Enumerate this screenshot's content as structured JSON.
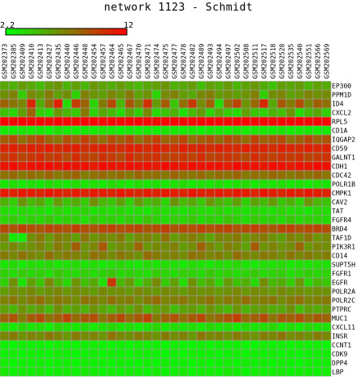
{
  "chart_data": {
    "type": "heatmap",
    "title": "network 1123 - Schmidt",
    "color_scale": {
      "min": 2.2,
      "max": 12,
      "min_label": "2.2",
      "max_label": "12",
      "low_color": "#00ff00",
      "high_color": "#ff0000",
      "grid_color": "#a0a0a0"
    },
    "columns": [
      "GSM202373",
      "GSM202385",
      "GSM202409",
      "GSM202410",
      "GSM202413",
      "GSM202427",
      "GSM202435",
      "GSM202440",
      "GSM202446",
      "GSM202448",
      "GSM202454",
      "GSM202457",
      "GSM202464",
      "GSM202465",
      "GSM202467",
      "GSM202470",
      "GSM202471",
      "GSM202474",
      "GSM202475",
      "GSM202477",
      "GSM202478",
      "GSM202482",
      "GSM202489",
      "GSM202493",
      "GSM202494",
      "GSM202497",
      "GSM202502",
      "GSM202508",
      "GSM202511",
      "GSM202517",
      "GSM202518",
      "GSM202528",
      "GSM202535",
      "GSM202540",
      "GSM202551",
      "GSM202566",
      "GSM202569"
    ],
    "rows": [
      "EP300",
      "PPM1D",
      "ID4",
      "CXCL2",
      "RPL5",
      "CD1A",
      "IQGAP2",
      "CD59",
      "GALNT1",
      "CDH1",
      "CDC42",
      "POLR1B",
      "CMPK1",
      "CAV2",
      "TAT",
      "FGFR4",
      "BRD4",
      "TAF1D",
      "PIK3R1",
      "CD14",
      "SUPT5H",
      "FGFR1",
      "EGFR",
      "POLR2A",
      "POLR2C",
      "PTPRC",
      "MUC1",
      "CXCL11",
      "INSR",
      "CCNT1",
      "CDK9",
      "DPP4",
      "LBP"
    ],
    "values": [
      [
        5.6,
        5.2,
        6.0,
        5.5,
        4.8,
        5.9,
        6.4,
        5.1,
        5.8,
        5.0,
        6.2,
        5.7,
        5.3,
        6.1,
        5.4,
        4.9,
        5.6,
        5.9,
        6.3,
        5.2,
        5.5,
        6.0,
        4.7,
        5.8,
        5.3,
        6.1,
        5.0,
        5.7,
        6.2,
        5.4,
        4.6,
        5.9,
        5.6,
        6.0,
        5.1,
        5.8,
        5.5
      ],
      [
        6.5,
        7.0,
        4.2,
        6.8,
        6.1,
        7.3,
        5.8,
        6.6,
        4.0,
        7.1,
        6.3,
        5.9,
        6.9,
        6.2,
        7.4,
        5.7,
        6.4,
        3.8,
        6.7,
        7.0,
        6.0,
        5.5,
        6.8,
        7.2,
        6.1,
        6.5,
        5.9,
        6.3,
        7.1,
        4.1,
        6.6,
        6.9,
        5.8,
        6.2,
        7.0,
        6.4,
        6.7
      ],
      [
        8.2,
        7.5,
        6.9,
        10.5,
        5.4,
        7.8,
        10.8,
        3.6,
        9.6,
        8.1,
        3.9,
        7.3,
        9.2,
        5.0,
        8.8,
        7.0,
        10.2,
        6.1,
        8.5,
        4.4,
        7.7,
        9.8,
        6.6,
        8.3,
        3.5,
        7.9,
        9.4,
        6.3,
        8.0,
        10.4,
        5.6,
        8.6,
        7.2,
        9.1,
        6.8,
        8.4,
        7.6
      ],
      [
        4.6,
        3.8,
        5.9,
        8.2,
        4.1,
        3.5,
        6.2,
        5.0,
        4.3,
        7.4,
        3.9,
        5.5,
        4.8,
        3.6,
        5.7,
        4.0,
        6.8,
        3.7,
        4.5,
        5.2,
        3.4,
        4.9,
        6.0,
        3.8,
        5.4,
        4.2,
        3.6,
        5.8,
        4.4,
        3.9,
        5.1,
        4.7,
        6.3,
        3.5,
        4.8,
        5.6,
        4.1
      ],
      [
        11.8,
        11.6,
        11.9,
        11.7,
        11.8,
        11.5,
        11.9,
        11.7,
        11.6,
        11.8,
        11.9,
        11.7,
        11.8,
        11.6,
        11.9,
        11.8,
        11.7,
        11.5,
        11.8,
        11.9,
        11.6,
        11.7,
        11.8,
        11.9,
        11.7,
        11.6,
        11.8,
        11.9,
        11.7,
        11.8,
        11.6,
        11.9,
        11.7,
        11.8,
        11.6,
        11.9,
        11.8
      ],
      [
        3.0,
        2.8,
        3.2,
        2.9,
        3.1,
        2.7,
        3.3,
        3.0,
        2.8,
        3.1,
        2.9,
        3.2,
        3.0,
        2.7,
        3.1,
        2.9,
        3.0,
        2.8,
        3.2,
        3.1,
        2.9,
        3.0,
        2.7,
        3.1,
        3.0,
        2.8,
        3.2,
        2.9,
        3.1,
        3.0,
        2.8,
        3.2,
        2.9,
        3.0,
        3.1,
        2.8,
        3.0
      ],
      [
        8.5,
        9.2,
        7.8,
        8.8,
        9.5,
        8.1,
        7.6,
        9.0,
        8.3,
        9.7,
        8.6,
        7.9,
        9.1,
        8.4,
        9.3,
        7.7,
        8.9,
        9.6,
        8.2,
        8.7,
        9.4,
        7.8,
        8.5,
        9.0,
        8.0,
        9.2,
        8.6,
        7.9,
        9.5,
        8.3,
        8.8,
        9.1,
        7.7,
        8.4,
        9.3,
        8.1,
        8.9
      ],
      [
        10.6,
        10.9,
        10.3,
        10.8,
        10.5,
        11.0,
        10.4,
        10.7,
        10.9,
        10.2,
        10.6,
        10.8,
        10.5,
        10.3,
        10.9,
        10.7,
        10.4,
        10.8,
        10.6,
        10.2,
        10.9,
        10.5,
        10.7,
        10.3,
        10.8,
        10.6,
        10.4,
        10.9,
        10.5,
        10.7,
        10.3,
        10.8,
        10.6,
        10.4,
        10.9,
        10.5,
        10.7
      ],
      [
        9.6,
        10.2,
        9.3,
        9.9,
        10.4,
        9.5,
        10.0,
        9.1,
        10.3,
        9.7,
        9.4,
        10.1,
        9.8,
        9.2,
        10.5,
        9.6,
        9.9,
        10.2,
        9.3,
        9.7,
        10.0,
        9.5,
        10.3,
        9.4,
        9.8,
        10.1,
        9.6,
        9.2,
        10.4,
        9.9,
        9.5,
        10.0,
        9.7,
        10.2,
        9.3,
        9.8,
        10.1
      ],
      [
        11.2,
        11.5,
        11.0,
        11.4,
        11.3,
        11.6,
        11.1,
        11.5,
        11.2,
        11.4,
        11.0,
        11.6,
        11.3,
        11.1,
        11.5,
        11.2,
        11.4,
        11.0,
        11.6,
        11.3,
        11.1,
        11.5,
        11.2,
        11.4,
        11.3,
        11.0,
        11.6,
        11.2,
        11.4,
        11.1,
        11.5,
        11.3,
        11.0,
        11.4,
        11.2,
        11.6,
        11.3
      ],
      [
        7.6,
        8.0,
        7.3,
        7.9,
        7.5,
        8.2,
        7.4,
        7.8,
        8.1,
        7.2,
        7.7,
        8.0,
        7.5,
        7.9,
        7.3,
        8.1,
        7.6,
        7.8,
        7.4,
        8.2,
        7.7,
        7.5,
        8.0,
        7.3,
        7.9,
        7.6,
        8.1,
        7.4,
        7.8,
        7.5,
        8.0,
        7.7,
        7.3,
        7.9,
        7.6,
        8.1,
        7.5
      ],
      [
        3.2,
        3.5,
        3.0,
        3.4,
        3.1,
        3.6,
        3.3,
        3.0,
        3.5,
        3.2,
        3.4,
        3.1,
        3.6,
        3.3,
        3.0,
        3.5,
        3.2,
        3.4,
        3.1,
        3.3,
        3.6,
        3.0,
        3.4,
        3.2,
        3.5,
        3.1,
        3.3,
        3.6,
        3.0,
        3.4,
        3.2,
        3.5,
        3.1,
        3.3,
        3.0,
        3.4,
        3.2
      ],
      [
        11.0,
        10.7,
        11.1,
        10.9,
        10.6,
        11.2,
        10.8,
        10.5,
        11.0,
        10.7,
        11.1,
        10.9,
        10.6,
        11.2,
        10.8,
        10.4,
        11.0,
        10.7,
        11.1,
        10.9,
        10.6,
        11.2,
        10.8,
        10.5,
        11.0,
        10.7,
        11.1,
        10.9,
        10.6,
        11.2,
        10.8,
        10.5,
        11.0,
        10.7,
        11.1,
        10.9,
        10.6
      ],
      [
        5.2,
        4.1,
        6.3,
        4.8,
        5.6,
        3.9,
        6.0,
        4.5,
        5.4,
        4.2,
        6.5,
        5.0,
        4.4,
        5.8,
        4.0,
        6.1,
        4.7,
        5.3,
        3.8,
        6.4,
        4.9,
        5.5,
        4.3,
        6.2,
        5.1,
        4.6,
        5.9,
        4.0,
        5.7,
        4.8,
        6.0,
        4.4,
        5.2,
        3.9,
        6.3,
        5.0,
        4.5
      ],
      [
        3.5,
        3.2,
        3.7,
        3.4,
        3.6,
        3.1,
        3.8,
        3.3,
        3.5,
        3.9,
        3.2,
        3.6,
        3.4,
        3.7,
        3.3,
        3.5,
        3.1,
        3.8,
        3.4,
        3.6,
        3.2,
        3.7,
        3.5,
        3.3,
        3.9,
        3.4,
        3.6,
        3.2,
        3.7,
        3.5,
        3.3,
        3.8,
        3.4,
        3.6,
        3.1,
        3.7,
        3.5
      ],
      [
        3.8,
        4.2,
        3.5,
        4.0,
        3.7,
        4.4,
        3.6,
        4.1,
        3.9,
        3.4,
        4.3,
        3.8,
        4.0,
        3.6,
        4.2,
        3.7,
        4.5,
        3.9,
        3.5,
        4.1,
        3.8,
        4.3,
        3.6,
        4.0,
        3.7,
        4.4,
        3.9,
        3.5,
        4.2,
        3.8,
        4.0,
        3.6,
        4.3,
        3.7,
        4.1,
        3.9,
        3.6
      ],
      [
        9.2,
        8.8,
        9.5,
        9.0,
        8.7,
        9.4,
        9.1,
        8.9,
        9.6,
        9.0,
        8.8,
        9.3,
        9.5,
        8.9,
        9.2,
        9.4,
        8.7,
        9.1,
        9.6,
        8.8,
        9.3,
        9.0,
        9.5,
        8.9,
        9.2,
        9.4,
        8.8,
        9.1,
        9.6,
        9.0,
        8.7,
        9.3,
        9.5,
        8.9,
        9.2,
        9.4,
        9.0
      ],
      [
        6.9,
        3.1,
        2.9,
        6.5,
        7.4,
        6.1,
        7.2,
        6.8,
        5.9,
        7.5,
        6.3,
        7.0,
        6.6,
        7.3,
        5.8,
        6.9,
        7.1,
        6.4,
        7.6,
        6.0,
        6.7,
        7.2,
        6.5,
        5.7,
        7.0,
        6.8,
        7.4,
        6.2,
        6.9,
        7.3,
        6.4,
        5.9,
        7.1,
        6.6,
        7.5,
        6.3,
        6.8
      ],
      [
        6.2,
        6.8,
        5.9,
        6.5,
        7.0,
        6.1,
        7.4,
        6.6,
        8.4,
        6.3,
        6.9,
        8.6,
        6.0,
        6.7,
        6.4,
        8.2,
        6.2,
        6.8,
        6.5,
        7.1,
        6.0,
        6.6,
        8.3,
        6.9,
        6.1,
        7.2,
        6.7,
        5.8,
        8.5,
        6.4,
        7.0,
        6.3,
        6.6,
        8.1,
        6.2,
        6.9,
        6.5
      ],
      [
        7.3,
        6.8,
        7.6,
        7.0,
        6.5,
        7.8,
        6.9,
        7.4,
        7.1,
        6.6,
        7.7,
        7.2,
        6.7,
        7.5,
        7.0,
        6.4,
        7.9,
        7.3,
        6.8,
        7.1,
        6.6,
        7.6,
        7.4,
        6.9,
        7.2,
        6.5,
        7.8,
        7.0,
        6.7,
        7.4,
        7.1,
        6.6,
        7.5,
        6.9,
        7.3,
        6.8,
        7.2
      ],
      [
        3.2,
        3.6,
        3.0,
        3.5,
        3.3,
        3.7,
        3.1,
        3.4,
        3.6,
        3.2,
        3.5,
        3.0,
        3.4,
        3.7,
        3.3,
        3.1,
        3.6,
        3.2,
        3.5,
        3.4,
        3.0,
        3.6,
        3.3,
        3.1,
        3.5,
        3.4,
        3.7,
        3.2,
        3.0,
        3.5,
        3.3,
        3.6,
        3.1,
        3.4,
        3.2,
        3.5,
        3.3
      ],
      [
        3.9,
        3.5,
        4.2,
        3.7,
        4.0,
        3.4,
        4.3,
        3.8,
        3.6,
        4.1,
        3.5,
        3.9,
        4.4,
        3.6,
        4.0,
        3.7,
        3.4,
        4.2,
        3.8,
        3.5,
        4.1,
        3.9,
        3.6,
        4.3,
        3.7,
        4.0,
        3.5,
        3.8,
        4.2,
        3.6,
        3.9,
        4.1,
        3.4,
        3.8,
        4.0,
        3.7,
        3.9
      ],
      [
        4.0,
        6.5,
        3.2,
        5.8,
        4.4,
        6.9,
        5.1,
        3.7,
        6.3,
        4.6,
        5.5,
        3.4,
        9.8,
        4.9,
        6.1,
        3.8,
        5.3,
        6.7,
        4.2,
        5.9,
        3.5,
        6.4,
        4.7,
        5.6,
        3.9,
        6.0,
        4.5,
        5.2,
        3.6,
        6.6,
        4.8,
        5.4,
        4.1,
        6.2,
        3.7,
        5.0,
        4.3
      ],
      [
        6.0,
        6.6,
        6.3,
        6.8,
        6.1,
        6.5,
        6.9,
        6.2,
        6.7,
        6.4,
        6.0,
        6.8,
        6.3,
        6.6,
        6.1,
        6.9,
        6.4,
        6.2,
        6.7,
        6.5,
        6.0,
        6.8,
        6.3,
        6.6,
        6.1,
        6.4,
        6.9,
        6.2,
        6.7,
        6.5,
        6.0,
        6.8,
        6.3,
        6.6,
        6.2,
        6.5,
        6.4
      ],
      [
        7.0,
        7.5,
        6.7,
        7.3,
        7.8,
        6.9,
        7.4,
        7.1,
        6.6,
        7.6,
        7.2,
        6.8,
        7.7,
        7.0,
        7.4,
        6.5,
        7.3,
        7.9,
        6.9,
        7.2,
        7.5,
        6.8,
        7.1,
        7.6,
        6.7,
        7.4,
        7.0,
        7.8,
        6.9,
        7.3,
        7.5,
        6.6,
        7.2,
        7.7,
        6.8,
        7.1,
        7.4
      ],
      [
        5.8,
        5.0,
        6.4,
        5.5,
        6.0,
        4.8,
        6.6,
        5.3,
        5.9,
        5.1,
        6.3,
        5.6,
        4.9,
        6.1,
        5.4,
        6.5,
        5.0,
        5.8,
        6.2,
        4.7,
        5.7,
        6.0,
        5.2,
        6.4,
        5.5,
        4.9,
        6.3,
        5.1,
        5.9,
        6.1,
        5.3,
        5.6,
        6.5,
        4.8,
        5.8,
        5.4,
        6.0
      ],
      [
        8.1,
        8.8,
        7.2,
        8.5,
        9.1,
        7.6,
        8.3,
        9.4,
        7.9,
        8.7,
        9.0,
        7.4,
        8.4,
        9.2,
        7.8,
        8.6,
        9.5,
        7.3,
        8.2,
        8.9,
        7.7,
        8.5,
        9.3,
        7.5,
        8.1,
        8.8,
        9.6,
        7.9,
        8.4,
        9.1,
        7.6,
        8.7,
        8.3,
        9.0,
        7.8,
        8.6,
        8.2
      ],
      [
        3.4,
        3.0,
        3.7,
        3.2,
        3.5,
        2.9,
        3.8,
        3.3,
        3.1,
        3.6,
        3.0,
        3.4,
        3.7,
        3.2,
        3.5,
        2.9,
        3.3,
        3.8,
        3.1,
        3.6,
        3.2,
        3.4,
        3.0,
        3.7,
        3.3,
        3.5,
        2.9,
        3.6,
        3.2,
        3.4,
        3.8,
        3.1,
        3.5,
        3.0,
        3.7,
        3.3,
        3.4
      ],
      [
        6.8,
        7.3,
        6.4,
        7.1,
        6.6,
        7.5,
        6.9,
        6.2,
        7.4,
        6.7,
        7.0,
        6.3,
        7.6,
        6.8,
        6.5,
        7.2,
        6.9,
        6.4,
        7.3,
        6.6,
        7.1,
        6.2,
        7.5,
        6.8,
        7.0,
        6.5,
        7.4,
        6.7,
        6.3,
        7.2,
        6.9,
        7.6,
        6.6,
        7.0,
        6.4,
        7.3,
        6.8
      ],
      [
        2.8,
        2.6,
        2.9,
        2.7,
        2.8,
        2.5,
        2.9,
        2.7,
        2.6,
        2.8,
        2.9,
        2.7,
        2.6,
        2.8,
        2.5,
        2.9,
        2.7,
        2.8,
        2.6,
        2.9,
        2.7,
        2.5,
        2.8,
        2.6,
        2.9,
        2.7,
        2.8,
        2.6,
        2.5,
        2.9,
        2.7,
        2.8,
        2.6,
        2.9,
        2.7,
        2.8,
        2.6
      ],
      [
        2.7,
        2.9,
        2.6,
        2.8,
        2.7,
        2.5,
        2.9,
        2.8,
        2.6,
        2.7,
        2.9,
        2.5,
        2.8,
        2.7,
        2.6,
        2.9,
        2.8,
        2.7,
        2.5,
        2.8,
        2.6,
        2.9,
        2.7,
        2.8,
        2.5,
        2.7,
        2.9,
        2.6,
        2.8,
        2.7,
        2.9,
        2.5,
        2.8,
        2.6,
        2.7,
        2.9,
        2.8
      ],
      [
        2.9,
        2.6,
        2.8,
        2.7,
        2.9,
        2.6,
        2.7,
        2.8,
        2.5,
        2.9,
        2.7,
        2.8,
        2.6,
        2.9,
        2.7,
        2.5,
        2.8,
        2.6,
        2.9,
        2.7,
        2.8,
        2.6,
        2.9,
        2.5,
        2.7,
        2.8,
        2.6,
        2.9,
        2.7,
        2.8,
        2.5,
        2.9,
        2.7,
        2.6,
        2.8,
        2.7,
        2.9
      ],
      [
        3.0,
        2.7,
        2.9,
        2.8,
        3.0,
        2.6,
        2.8,
        2.9,
        2.7,
        3.0,
        2.8,
        2.6,
        2.9,
        2.7,
        3.0,
        2.8,
        2.6,
        2.9,
        2.7,
        2.8,
        3.0,
        2.6,
        2.9,
        2.8,
        2.7,
        3.0,
        2.8,
        2.6,
        2.9,
        2.7,
        2.8,
        3.0,
        2.6,
        2.9,
        2.8,
        2.7,
        2.9
      ]
    ]
  }
}
